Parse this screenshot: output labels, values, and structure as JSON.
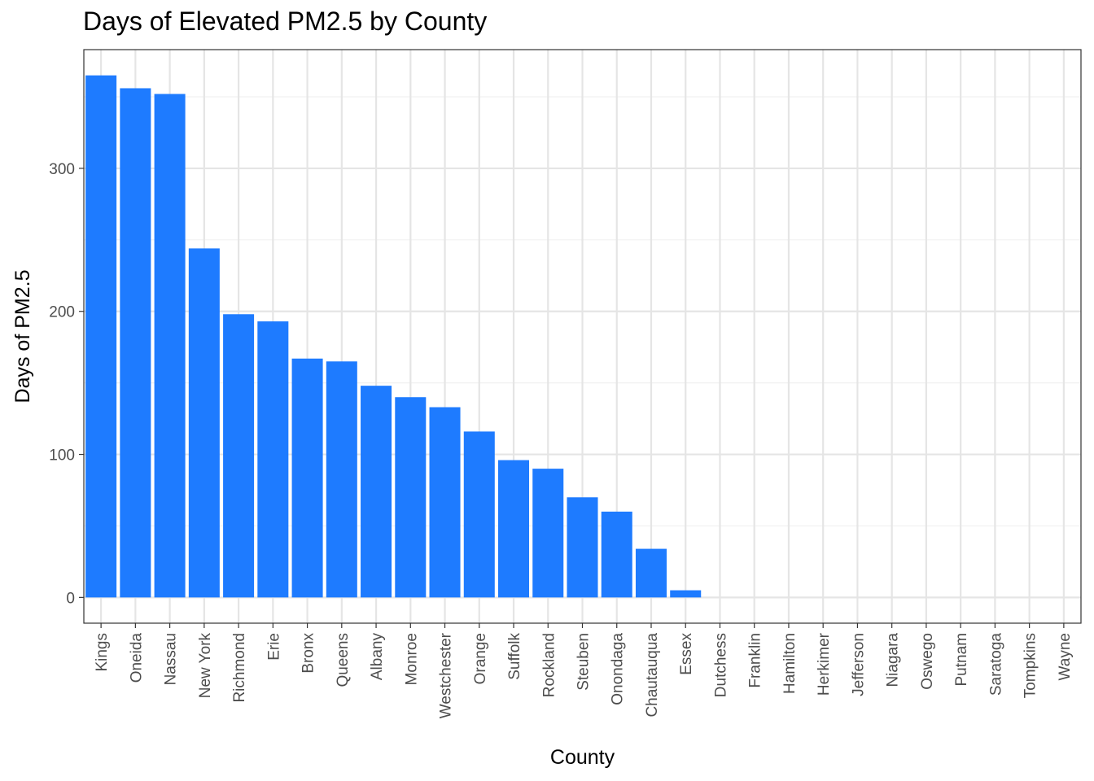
{
  "chart_data": {
    "type": "bar",
    "title": "Days of Elevated PM2.5 by County",
    "xlabel": "County",
    "ylabel": "Days of PM2.5",
    "ylim": [
      -18,
      383
    ],
    "yticks": [
      0,
      100,
      200,
      300
    ],
    "grid": true,
    "legend": "none",
    "bar_color": "#1e7bff",
    "categories": [
      "Kings",
      "Oneida",
      "Nassau",
      "New York",
      "Richmond",
      "Erie",
      "Bronx",
      "Queens",
      "Albany",
      "Monroe",
      "Westchester",
      "Orange",
      "Suffolk",
      "Rockland",
      "Steuben",
      "Onondaga",
      "Chautauqua",
      "Essex",
      "Dutchess",
      "Franklin",
      "Hamilton",
      "Herkimer",
      "Jefferson",
      "Niagara",
      "Oswego",
      "Putnam",
      "Saratoga",
      "Tompkins",
      "Wayne"
    ],
    "values": [
      365,
      356,
      352,
      244,
      198,
      193,
      167,
      165,
      148,
      140,
      133,
      116,
      96,
      90,
      70,
      60,
      34,
      5,
      0,
      0,
      0,
      0,
      0,
      0,
      0,
      0,
      0,
      0,
      0
    ]
  }
}
